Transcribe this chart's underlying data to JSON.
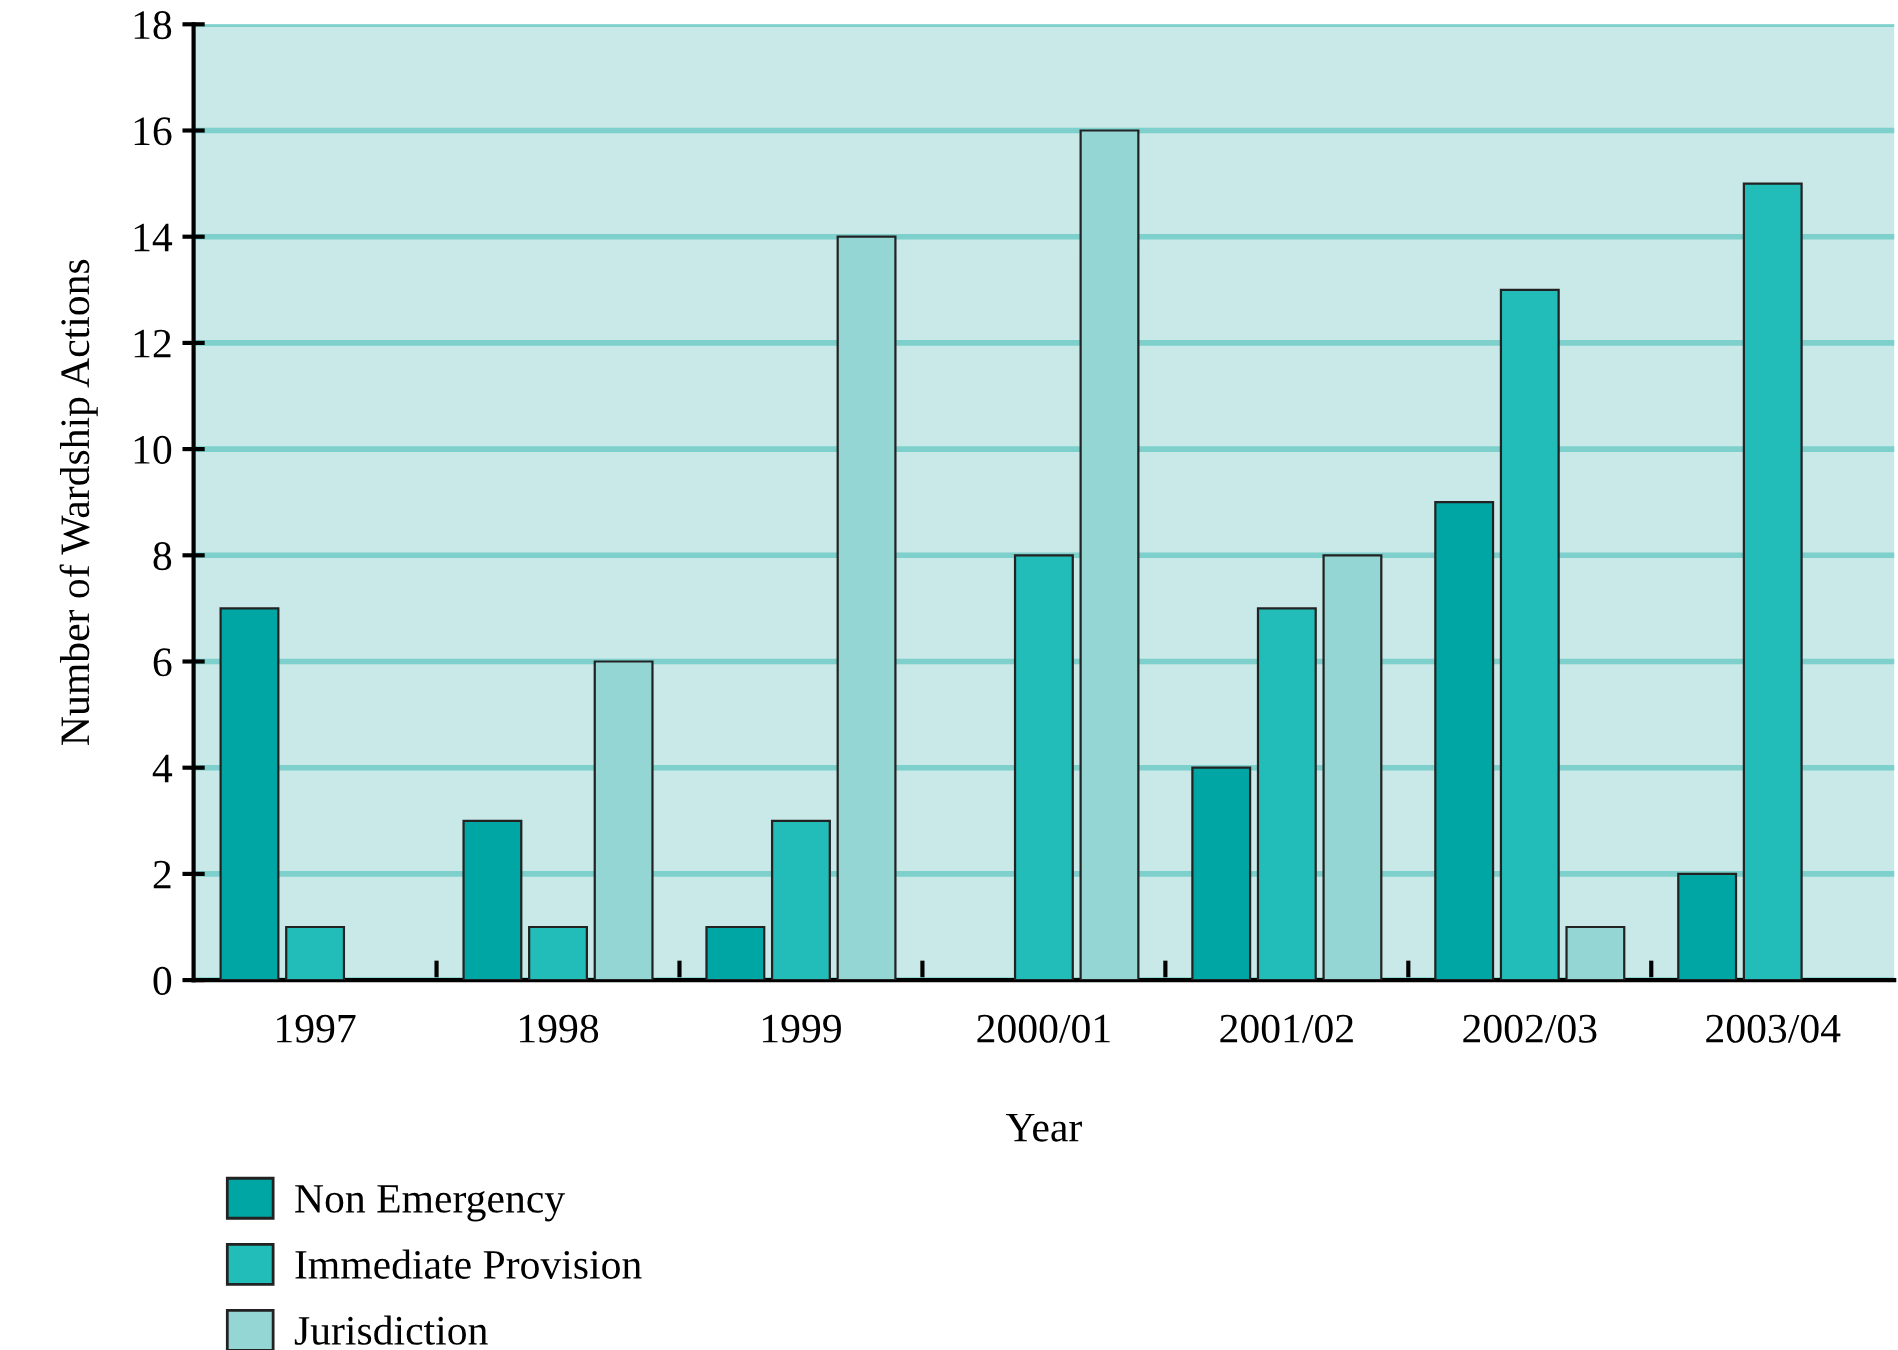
{
  "chart_data": {
    "type": "bar",
    "xlabel": "Year",
    "ylabel": "Number of Wardship Actions",
    "categories": [
      "1997",
      "1998",
      "1999",
      "2000/01",
      "2001/02",
      "2002/03",
      "2003/04"
    ],
    "series": [
      {
        "name": "Non Emergency",
        "color": "#00a6a4",
        "values": [
          7,
          3,
          1,
          0,
          4,
          9,
          2
        ]
      },
      {
        "name": "Immediate Provision",
        "color": "#22bdb9",
        "values": [
          1,
          1,
          3,
          8,
          7,
          13,
          15
        ]
      },
      {
        "name": "Jurisdiction",
        "color": "#94d6d4",
        "values": [
          0,
          6,
          14,
          16,
          8,
          1,
          0
        ]
      }
    ],
    "ylim": [
      0,
      18
    ],
    "yticks": [
      0,
      2,
      4,
      6,
      8,
      10,
      12,
      14,
      16,
      18
    ],
    "grid": "y",
    "legend": "bottom left"
  }
}
